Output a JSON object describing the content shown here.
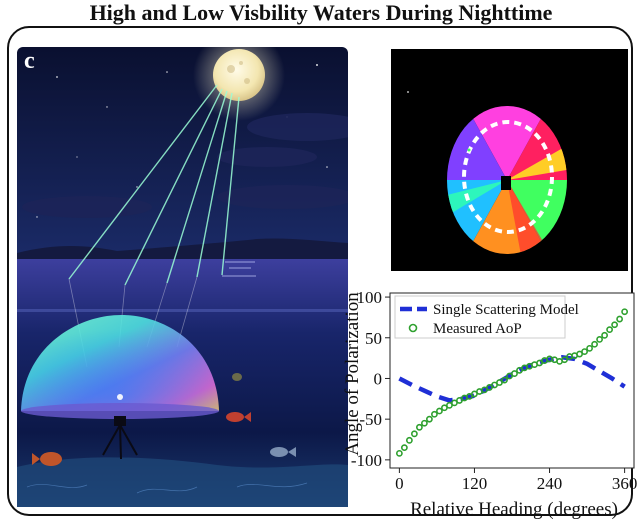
{
  "title": "High and Low Visbility Waters During Nighttime",
  "panel_label": "c",
  "scene_image": {
    "elements": [
      "moon",
      "light-rays",
      "night-sky",
      "clouds",
      "distant-shoreline",
      "sea-surface",
      "polarization-dome",
      "tripod-camera",
      "fish",
      "seabed"
    ]
  },
  "aop_image": {
    "background": "#000000",
    "colormap": "hue-wheel",
    "overlay": "dashed-white-ring"
  },
  "chart_data": {
    "type": "line",
    "xlabel": "Relative Heading (degrees)",
    "ylabel": "Angle of Polarization",
    "xlim": [
      -15,
      375
    ],
    "ylim": [
      -110,
      105
    ],
    "xticks": [
      0,
      120,
      240,
      360
    ],
    "yticks": [
      -100,
      -50,
      0,
      50,
      100
    ],
    "legend_position": "top-left",
    "series": [
      {
        "name": "Single Scattering Model",
        "style": "dashed-line",
        "color": "#1f2fd6",
        "x": [
          0,
          20,
          40,
          60,
          80,
          100,
          120,
          140,
          160,
          180,
          200,
          220,
          240,
          260,
          280,
          300,
          320,
          340,
          360
        ],
        "y": [
          0,
          -8,
          -15,
          -22,
          -27,
          -25,
          -21,
          -13,
          -4,
          5,
          13,
          19,
          23,
          26,
          24,
          18,
          9,
          0,
          -10
        ]
      },
      {
        "name": "Measured AoP",
        "style": "open-circle",
        "color": "#2ea02e",
        "x": [
          0,
          8,
          16,
          24,
          32,
          40,
          48,
          56,
          64,
          72,
          80,
          88,
          96,
          104,
          112,
          120,
          128,
          136,
          144,
          152,
          160,
          168,
          176,
          184,
          192,
          200,
          208,
          216,
          224,
          232,
          240,
          248,
          256,
          264,
          272,
          280,
          288,
          296,
          304,
          312,
          320,
          328,
          336,
          344,
          352,
          360
        ],
        "y": [
          -92,
          -85,
          -76,
          -68,
          -60,
          -55,
          -50,
          -44,
          -40,
          -36,
          -33,
          -30,
          -27,
          -24,
          -22,
          -19,
          -16,
          -14,
          -11,
          -8,
          -5,
          -2,
          3,
          6,
          10,
          13,
          15,
          17,
          19,
          22,
          24,
          23,
          21,
          23,
          27,
          28,
          30,
          33,
          37,
          42,
          48,
          53,
          60,
          66,
          73,
          82
        ]
      }
    ]
  }
}
